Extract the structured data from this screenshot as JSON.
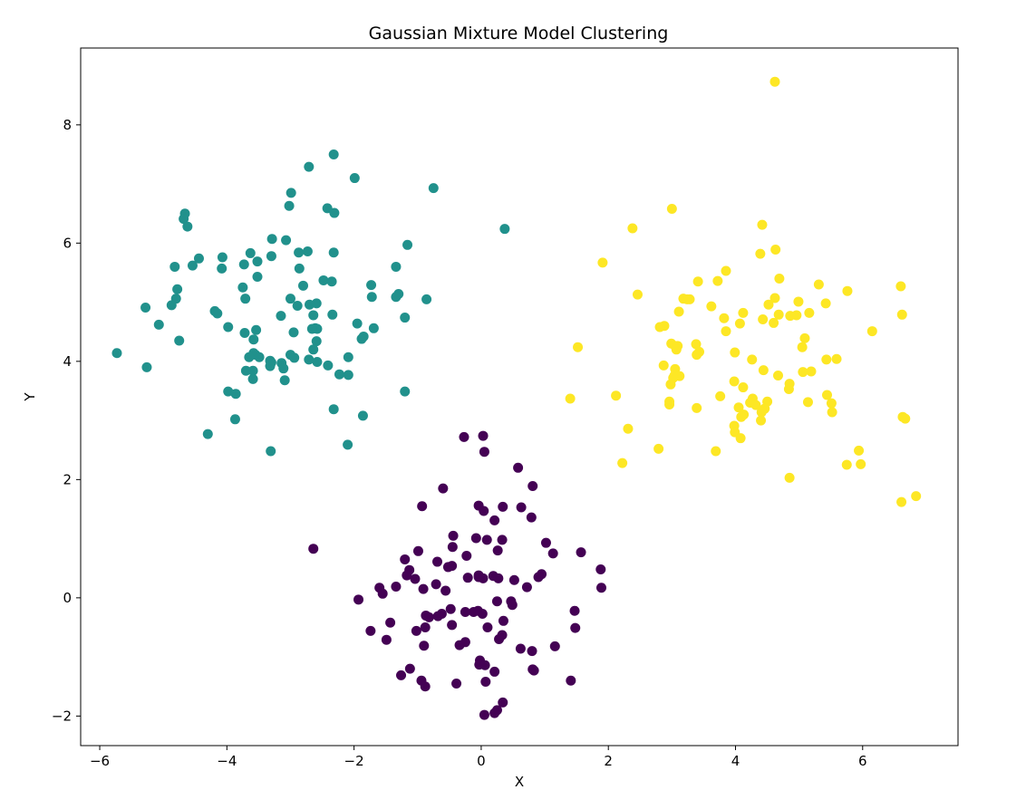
{
  "chart_data": {
    "type": "scatter",
    "title": "Gaussian Mixture Model Clustering",
    "xlabel": "X",
    "ylabel": "Y",
    "xlim": [
      -6.3,
      7.5
    ],
    "ylim": [
      -2.5,
      9.3
    ],
    "xticks": [
      -6,
      -4,
      -2,
      0,
      2,
      4,
      6
    ],
    "yticks": [
      -2,
      0,
      2,
      4,
      6,
      8
    ],
    "xtick_labels": [
      "−6",
      "−4",
      "−2",
      "0",
      "2",
      "4",
      "6"
    ],
    "ytick_labels": [
      "−2",
      "0",
      "2",
      "4",
      "6",
      "8"
    ],
    "grid": false,
    "series": [
      {
        "color": "#440154",
        "points": [
          [
            -0.27,
            2.72
          ],
          [
            0.03,
            2.74
          ],
          [
            0.05,
            2.47
          ],
          [
            0.58,
            2.2
          ],
          [
            0.81,
            1.89
          ],
          [
            -0.6,
            1.85
          ],
          [
            -0.93,
            1.55
          ],
          [
            -0.04,
            1.56
          ],
          [
            0.34,
            1.54
          ],
          [
            0.63,
            1.53
          ],
          [
            0.04,
            1.47
          ],
          [
            0.79,
            1.36
          ],
          [
            0.21,
            1.31
          ],
          [
            -0.44,
            1.05
          ],
          [
            -0.08,
            1.01
          ],
          [
            0.09,
            0.98
          ],
          [
            0.33,
            0.98
          ],
          [
            1.02,
            0.93
          ],
          [
            -0.45,
            0.86
          ],
          [
            -2.64,
            0.83
          ],
          [
            -0.99,
            0.79
          ],
          [
            0.26,
            0.8
          ],
          [
            1.57,
            0.77
          ],
          [
            1.13,
            0.75
          ],
          [
            -0.23,
            0.71
          ],
          [
            -1.2,
            0.65
          ],
          [
            -0.69,
            0.61
          ],
          [
            -0.52,
            0.52
          ],
          [
            -0.46,
            0.54
          ],
          [
            1.88,
            0.48
          ],
          [
            -1.13,
            0.47
          ],
          [
            -1.17,
            0.38
          ],
          [
            0.19,
            0.37
          ],
          [
            0.27,
            0.33
          ],
          [
            0.52,
            0.3
          ],
          [
            0.95,
            0.4
          ],
          [
            -0.04,
            0.38
          ],
          [
            -0.21,
            0.34
          ],
          [
            0.03,
            0.33
          ],
          [
            -0.04,
            0.35
          ],
          [
            -0.71,
            0.23
          ],
          [
            -1.34,
            0.19
          ],
          [
            -0.91,
            0.15
          ],
          [
            1.89,
            0.17
          ],
          [
            0.72,
            0.18
          ],
          [
            -1.6,
            0.17
          ],
          [
            0.9,
            0.35
          ],
          [
            -1.04,
            0.32
          ],
          [
            -0.56,
            0.12
          ],
          [
            -1.55,
            0.07
          ],
          [
            -1.93,
            -0.03
          ],
          [
            0.25,
            -0.06
          ],
          [
            0.47,
            -0.06
          ],
          [
            0.49,
            -0.12
          ],
          [
            -0.48,
            -0.19
          ],
          [
            -0.12,
            -0.24
          ],
          [
            -0.05,
            -0.22
          ],
          [
            0.02,
            -0.27
          ],
          [
            -0.62,
            -0.27
          ],
          [
            -0.68,
            -0.31
          ],
          [
            -0.87,
            -0.3
          ],
          [
            -0.82,
            -0.33
          ],
          [
            -0.25,
            -0.24
          ],
          [
            1.47,
            -0.22
          ],
          [
            0.35,
            -0.39
          ],
          [
            -1.43,
            -0.42
          ],
          [
            -0.46,
            -0.46
          ],
          [
            -0.88,
            -0.5
          ],
          [
            0.1,
            -0.5
          ],
          [
            1.48,
            -0.51
          ],
          [
            -1.02,
            -0.56
          ],
          [
            -1.74,
            -0.56
          ],
          [
            0.33,
            -0.63
          ],
          [
            0.28,
            -0.7
          ],
          [
            -1.49,
            -0.71
          ],
          [
            -0.25,
            -0.75
          ],
          [
            -0.34,
            -0.8
          ],
          [
            -0.9,
            -0.81
          ],
          [
            1.16,
            -0.82
          ],
          [
            0.62,
            -0.86
          ],
          [
            0.8,
            -0.9
          ],
          [
            -0.02,
            -1.06
          ],
          [
            -0.03,
            -1.13
          ],
          [
            0.06,
            -1.14
          ],
          [
            0.81,
            -1.21
          ],
          [
            0.83,
            -1.23
          ],
          [
            0.21,
            -1.25
          ],
          [
            -1.12,
            -1.2
          ],
          [
            -1.26,
            -1.31
          ],
          [
            1.41,
            -1.4
          ],
          [
            -0.94,
            -1.4
          ],
          [
            0.07,
            -1.42
          ],
          [
            -0.39,
            -1.45
          ],
          [
            -0.88,
            -1.5
          ],
          [
            0.34,
            -1.77
          ],
          [
            0.25,
            -1.9
          ],
          [
            0.21,
            -1.95
          ],
          [
            0.05,
            -1.98
          ]
        ]
      },
      {
        "color": "#21918c",
        "points": [
          [
            -2.32,
            7.5
          ],
          [
            -2.71,
            7.29
          ],
          [
            -1.99,
            7.1
          ],
          [
            -0.75,
            6.93
          ],
          [
            -2.99,
            6.85
          ],
          [
            -3.02,
            6.63
          ],
          [
            -2.42,
            6.59
          ],
          [
            -2.31,
            6.51
          ],
          [
            -4.66,
            6.5
          ],
          [
            -4.68,
            6.41
          ],
          [
            -4.62,
            6.28
          ],
          [
            0.37,
            6.24
          ],
          [
            -3.29,
            6.07
          ],
          [
            -3.07,
            6.05
          ],
          [
            -1.16,
            5.97
          ],
          [
            -3.63,
            5.83
          ],
          [
            -2.32,
            5.84
          ],
          [
            -2.87,
            5.84
          ],
          [
            -2.73,
            5.86
          ],
          [
            -3.3,
            5.78
          ],
          [
            -4.44,
            5.74
          ],
          [
            -4.07,
            5.76
          ],
          [
            -3.52,
            5.69
          ],
          [
            -3.73,
            5.64
          ],
          [
            -4.54,
            5.62
          ],
          [
            -4.82,
            5.6
          ],
          [
            -1.34,
            5.6
          ],
          [
            -4.08,
            5.57
          ],
          [
            -2.86,
            5.57
          ],
          [
            -3.52,
            5.43
          ],
          [
            -2.48,
            5.37
          ],
          [
            -2.35,
            5.35
          ],
          [
            -1.73,
            5.29
          ],
          [
            -2.8,
            5.28
          ],
          [
            -4.78,
            5.22
          ],
          [
            -3.75,
            5.25
          ],
          [
            -1.3,
            5.14
          ],
          [
            -1.34,
            5.09
          ],
          [
            -1.72,
            5.09
          ],
          [
            -3.0,
            5.06
          ],
          [
            -3.71,
            5.06
          ],
          [
            -4.8,
            5.06
          ],
          [
            -0.86,
            5.05
          ],
          [
            -2.59,
            4.98
          ],
          [
            -2.7,
            4.96
          ],
          [
            -2.89,
            4.94
          ],
          [
            -5.28,
            4.91
          ],
          [
            -4.87,
            4.95
          ],
          [
            -4.19,
            4.85
          ],
          [
            -4.15,
            4.81
          ],
          [
            -2.34,
            4.79
          ],
          [
            -3.15,
            4.77
          ],
          [
            -2.64,
            4.78
          ],
          [
            -1.2,
            4.74
          ],
          [
            -5.07,
            4.62
          ],
          [
            -3.98,
            4.58
          ],
          [
            -1.95,
            4.64
          ],
          [
            -2.61,
            4.56
          ],
          [
            -2.58,
            4.55
          ],
          [
            -2.66,
            4.55
          ],
          [
            -3.54,
            4.53
          ],
          [
            -3.72,
            4.48
          ],
          [
            -2.95,
            4.49
          ],
          [
            -1.85,
            4.42
          ],
          [
            -1.69,
            4.56
          ],
          [
            -1.88,
            4.38
          ],
          [
            -4.75,
            4.35
          ],
          [
            -2.59,
            4.34
          ],
          [
            -3.58,
            4.37
          ],
          [
            -2.64,
            4.2
          ],
          [
            -5.73,
            4.14
          ],
          [
            -3.58,
            4.14
          ],
          [
            -3.0,
            4.11
          ],
          [
            -3.55,
            4.11
          ],
          [
            -3.49,
            4.07
          ],
          [
            -3.65,
            4.07
          ],
          [
            -2.94,
            4.06
          ],
          [
            -2.71,
            4.03
          ],
          [
            -2.09,
            4.07
          ],
          [
            -2.58,
            3.99
          ],
          [
            -3.32,
            4.01
          ],
          [
            -3.3,
            3.98
          ],
          [
            -3.14,
            3.97
          ],
          [
            -3.32,
            3.92
          ],
          [
            -3.11,
            3.88
          ],
          [
            -3.59,
            3.84
          ],
          [
            -3.7,
            3.84
          ],
          [
            -5.26,
            3.9
          ],
          [
            -2.41,
            3.93
          ],
          [
            -2.23,
            3.78
          ],
          [
            -2.09,
            3.77
          ],
          [
            -3.09,
            3.68
          ],
          [
            -3.59,
            3.7
          ],
          [
            -1.2,
            3.49
          ],
          [
            -3.98,
            3.49
          ],
          [
            -3.86,
            3.45
          ],
          [
            -2.32,
            3.19
          ],
          [
            -1.86,
            3.08
          ],
          [
            -3.87,
            3.02
          ],
          [
            -4.3,
            2.77
          ],
          [
            -2.1,
            2.59
          ],
          [
            -3.31,
            2.48
          ]
        ]
      },
      {
        "color": "#fde725",
        "points": [
          [
            4.62,
            8.73
          ],
          [
            3.0,
            6.58
          ],
          [
            4.42,
            6.31
          ],
          [
            2.38,
            6.25
          ],
          [
            4.63,
            5.89
          ],
          [
            4.39,
            5.82
          ],
          [
            1.91,
            5.67
          ],
          [
            3.85,
            5.53
          ],
          [
            4.69,
            5.4
          ],
          [
            3.41,
            5.35
          ],
          [
            3.72,
            5.36
          ],
          [
            5.31,
            5.3
          ],
          [
            6.6,
            5.27
          ],
          [
            5.76,
            5.19
          ],
          [
            2.46,
            5.13
          ],
          [
            3.28,
            5.05
          ],
          [
            3.18,
            5.06
          ],
          [
            3.24,
            5.05
          ],
          [
            4.62,
            5.07
          ],
          [
            4.99,
            5.01
          ],
          [
            4.52,
            4.96
          ],
          [
            5.42,
            4.98
          ],
          [
            3.62,
            4.93
          ],
          [
            3.11,
            4.84
          ],
          [
            4.12,
            4.82
          ],
          [
            5.16,
            4.82
          ],
          [
            4.96,
            4.78
          ],
          [
            4.86,
            4.77
          ],
          [
            4.68,
            4.79
          ],
          [
            6.62,
            4.79
          ],
          [
            3.82,
            4.73
          ],
          [
            4.43,
            4.71
          ],
          [
            4.6,
            4.65
          ],
          [
            4.07,
            4.64
          ],
          [
            2.88,
            4.6
          ],
          [
            2.81,
            4.58
          ],
          [
            6.15,
            4.51
          ],
          [
            3.85,
            4.51
          ],
          [
            5.09,
            4.39
          ],
          [
            3.38,
            4.29
          ],
          [
            2.99,
            4.3
          ],
          [
            3.05,
            4.26
          ],
          [
            3.09,
            4.26
          ],
          [
            1.52,
            4.24
          ],
          [
            5.05,
            4.24
          ],
          [
            3.07,
            4.2
          ],
          [
            3.43,
            4.16
          ],
          [
            3.99,
            4.15
          ],
          [
            3.39,
            4.11
          ],
          [
            5.43,
            4.03
          ],
          [
            5.59,
            4.04
          ],
          [
            4.26,
            4.03
          ],
          [
            2.87,
            3.93
          ],
          [
            3.05,
            3.87
          ],
          [
            4.44,
            3.85
          ],
          [
            5.19,
            3.83
          ],
          [
            5.06,
            3.82
          ],
          [
            3.04,
            3.76
          ],
          [
            3.12,
            3.75
          ],
          [
            4.67,
            3.76
          ],
          [
            3.02,
            3.72
          ],
          [
            3.98,
            3.66
          ],
          [
            4.85,
            3.62
          ],
          [
            4.12,
            3.56
          ],
          [
            2.98,
            3.61
          ],
          [
            4.84,
            3.53
          ],
          [
            5.44,
            3.43
          ],
          [
            3.76,
            3.41
          ],
          [
            2.12,
            3.42
          ],
          [
            1.4,
            3.37
          ],
          [
            4.27,
            3.37
          ],
          [
            5.14,
            3.31
          ],
          [
            2.96,
            3.32
          ],
          [
            4.23,
            3.3
          ],
          [
            4.5,
            3.32
          ],
          [
            5.51,
            3.29
          ],
          [
            2.96,
            3.27
          ],
          [
            4.32,
            3.26
          ],
          [
            4.05,
            3.22
          ],
          [
            4.46,
            3.2
          ],
          [
            3.39,
            3.21
          ],
          [
            5.52,
            3.14
          ],
          [
            4.41,
            3.14
          ],
          [
            4.13,
            3.1
          ],
          [
            4.09,
            3.06
          ],
          [
            6.63,
            3.06
          ],
          [
            6.67,
            3.03
          ],
          [
            4.4,
            3.0
          ],
          [
            3.98,
            2.91
          ],
          [
            2.31,
            2.86
          ],
          [
            3.99,
            2.8
          ],
          [
            4.08,
            2.7
          ],
          [
            2.79,
            2.52
          ],
          [
            3.69,
            2.48
          ],
          [
            5.94,
            2.49
          ],
          [
            2.22,
            2.28
          ],
          [
            5.75,
            2.25
          ],
          [
            5.97,
            2.26
          ],
          [
            4.85,
            2.03
          ],
          [
            6.84,
            1.72
          ],
          [
            6.61,
            1.62
          ]
        ]
      }
    ]
  }
}
